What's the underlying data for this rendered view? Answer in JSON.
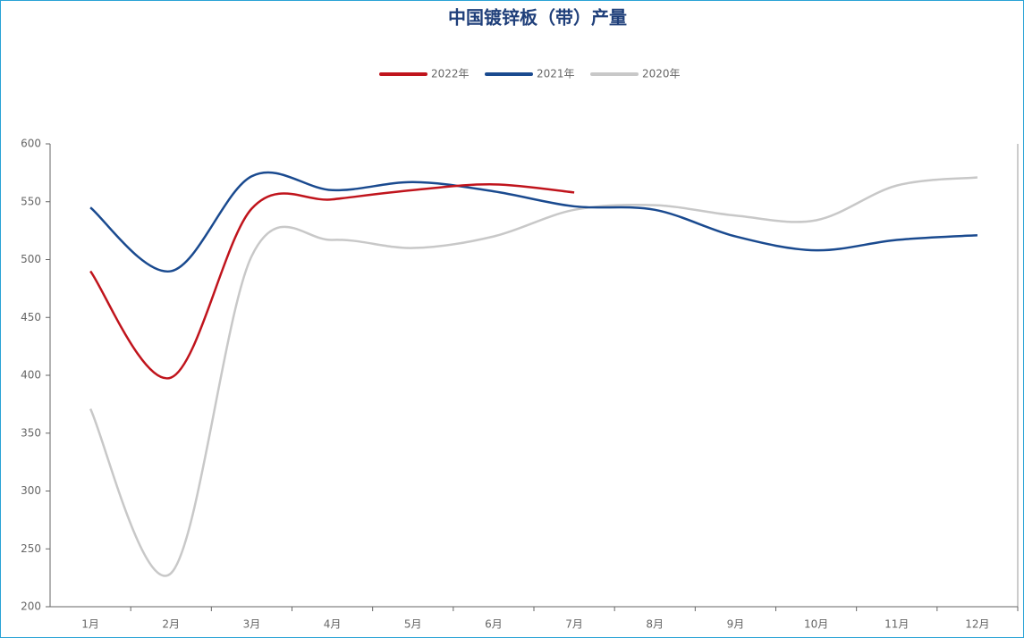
{
  "chart_data": {
    "type": "line",
    "title": "中国镀锌板（带）产量",
    "categories": [
      "1月",
      "2月",
      "3月",
      "4月",
      "5月",
      "6月",
      "7月",
      "8月",
      "9月",
      "10月",
      "11月",
      "12月"
    ],
    "series": [
      {
        "name": "2022年",
        "color": "#c0141c",
        "values": [
          490,
          398,
          544,
          552,
          560,
          565,
          558,
          null,
          null,
          null,
          null,
          null
        ]
      },
      {
        "name": "2021年",
        "color": "#1a4a8f",
        "values": [
          545,
          490,
          572,
          560,
          567,
          559,
          546,
          543,
          520,
          508,
          517,
          521
        ]
      },
      {
        "name": "2020年",
        "color": "#c8c8c8",
        "values": [
          371,
          229,
          503,
          517,
          510,
          520,
          543,
          547,
          538,
          534,
          564,
          571
        ]
      }
    ],
    "ylim": [
      200,
      600
    ],
    "yticks": [
      200,
      250,
      300,
      350,
      400,
      450,
      500,
      550,
      600
    ],
    "grid": false
  }
}
